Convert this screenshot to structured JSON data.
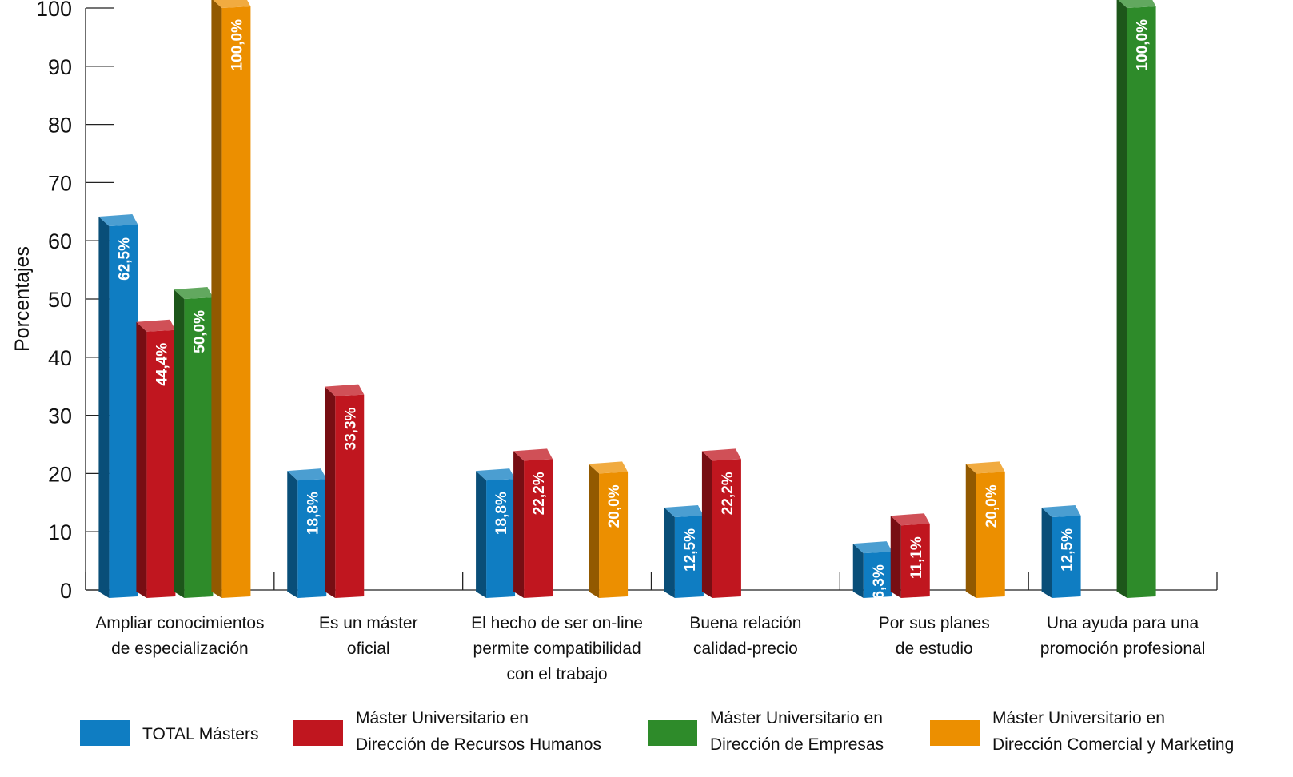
{
  "chart_data": {
    "type": "bar",
    "ylabel": "Porcentajes",
    "ylim": [
      0,
      100
    ],
    "yticks": [
      "0",
      "10",
      "20",
      "30",
      "40",
      "50",
      "60",
      "70",
      "80",
      "90",
      "100"
    ],
    "categories": [
      [
        "Ampliar conocimientos",
        "de especialización"
      ],
      [
        "Es un máster",
        "oficial"
      ],
      [
        "El hecho de ser on-line",
        "permite compatibilidad",
        "con el trabajo"
      ],
      [
        "Buena relación",
        "calidad-precio"
      ],
      [
        "Por sus planes",
        "de estudio"
      ],
      [
        "Una ayuda para una",
        "promoción profesional"
      ]
    ],
    "series": [
      {
        "name": "TOTAL Másters",
        "legend_lines": [
          "TOTAL Másters"
        ],
        "color": "#0f7dc2",
        "values": [
          62.5,
          18.8,
          18.8,
          12.5,
          6.3,
          12.5
        ],
        "labels": [
          "62,5%",
          "18,8%",
          "18,8%",
          "12,5%",
          "6,3%",
          "12,5%"
        ]
      },
      {
        "name": "Máster Universitario en Dirección de Recursos Humanos",
        "legend_lines": [
          "Máster Universitario en",
          "Dirección de Recursos Humanos"
        ],
        "color": "#c0161f",
        "values": [
          44.4,
          33.3,
          22.2,
          22.2,
          11.1,
          null
        ],
        "labels": [
          "44,4%",
          "33,3%",
          "22,2%",
          "22,2%",
          "11,1%",
          null
        ]
      },
      {
        "name": "Máster Universitario en Dirección de Empresas",
        "legend_lines": [
          "Máster Universitario en",
          "Dirección de Empresas"
        ],
        "color": "#2e8b2a",
        "values": [
          50.0,
          null,
          null,
          null,
          null,
          100.0
        ],
        "labels": [
          "50,0%",
          null,
          null,
          null,
          null,
          "100,0%"
        ]
      },
      {
        "name": "Máster Universitario en Dirección Comercial y Marketing",
        "legend_lines": [
          "Máster Universitario en",
          "Dirección Comercial y Marketing"
        ],
        "color": "#ec8f00",
        "values": [
          100.0,
          null,
          20.0,
          null,
          20.0,
          null
        ],
        "labels": [
          "100,0%",
          null,
          "20,0%",
          null,
          "20,0%",
          null
        ]
      }
    ],
    "grid": false,
    "legend_position": "bottom"
  }
}
